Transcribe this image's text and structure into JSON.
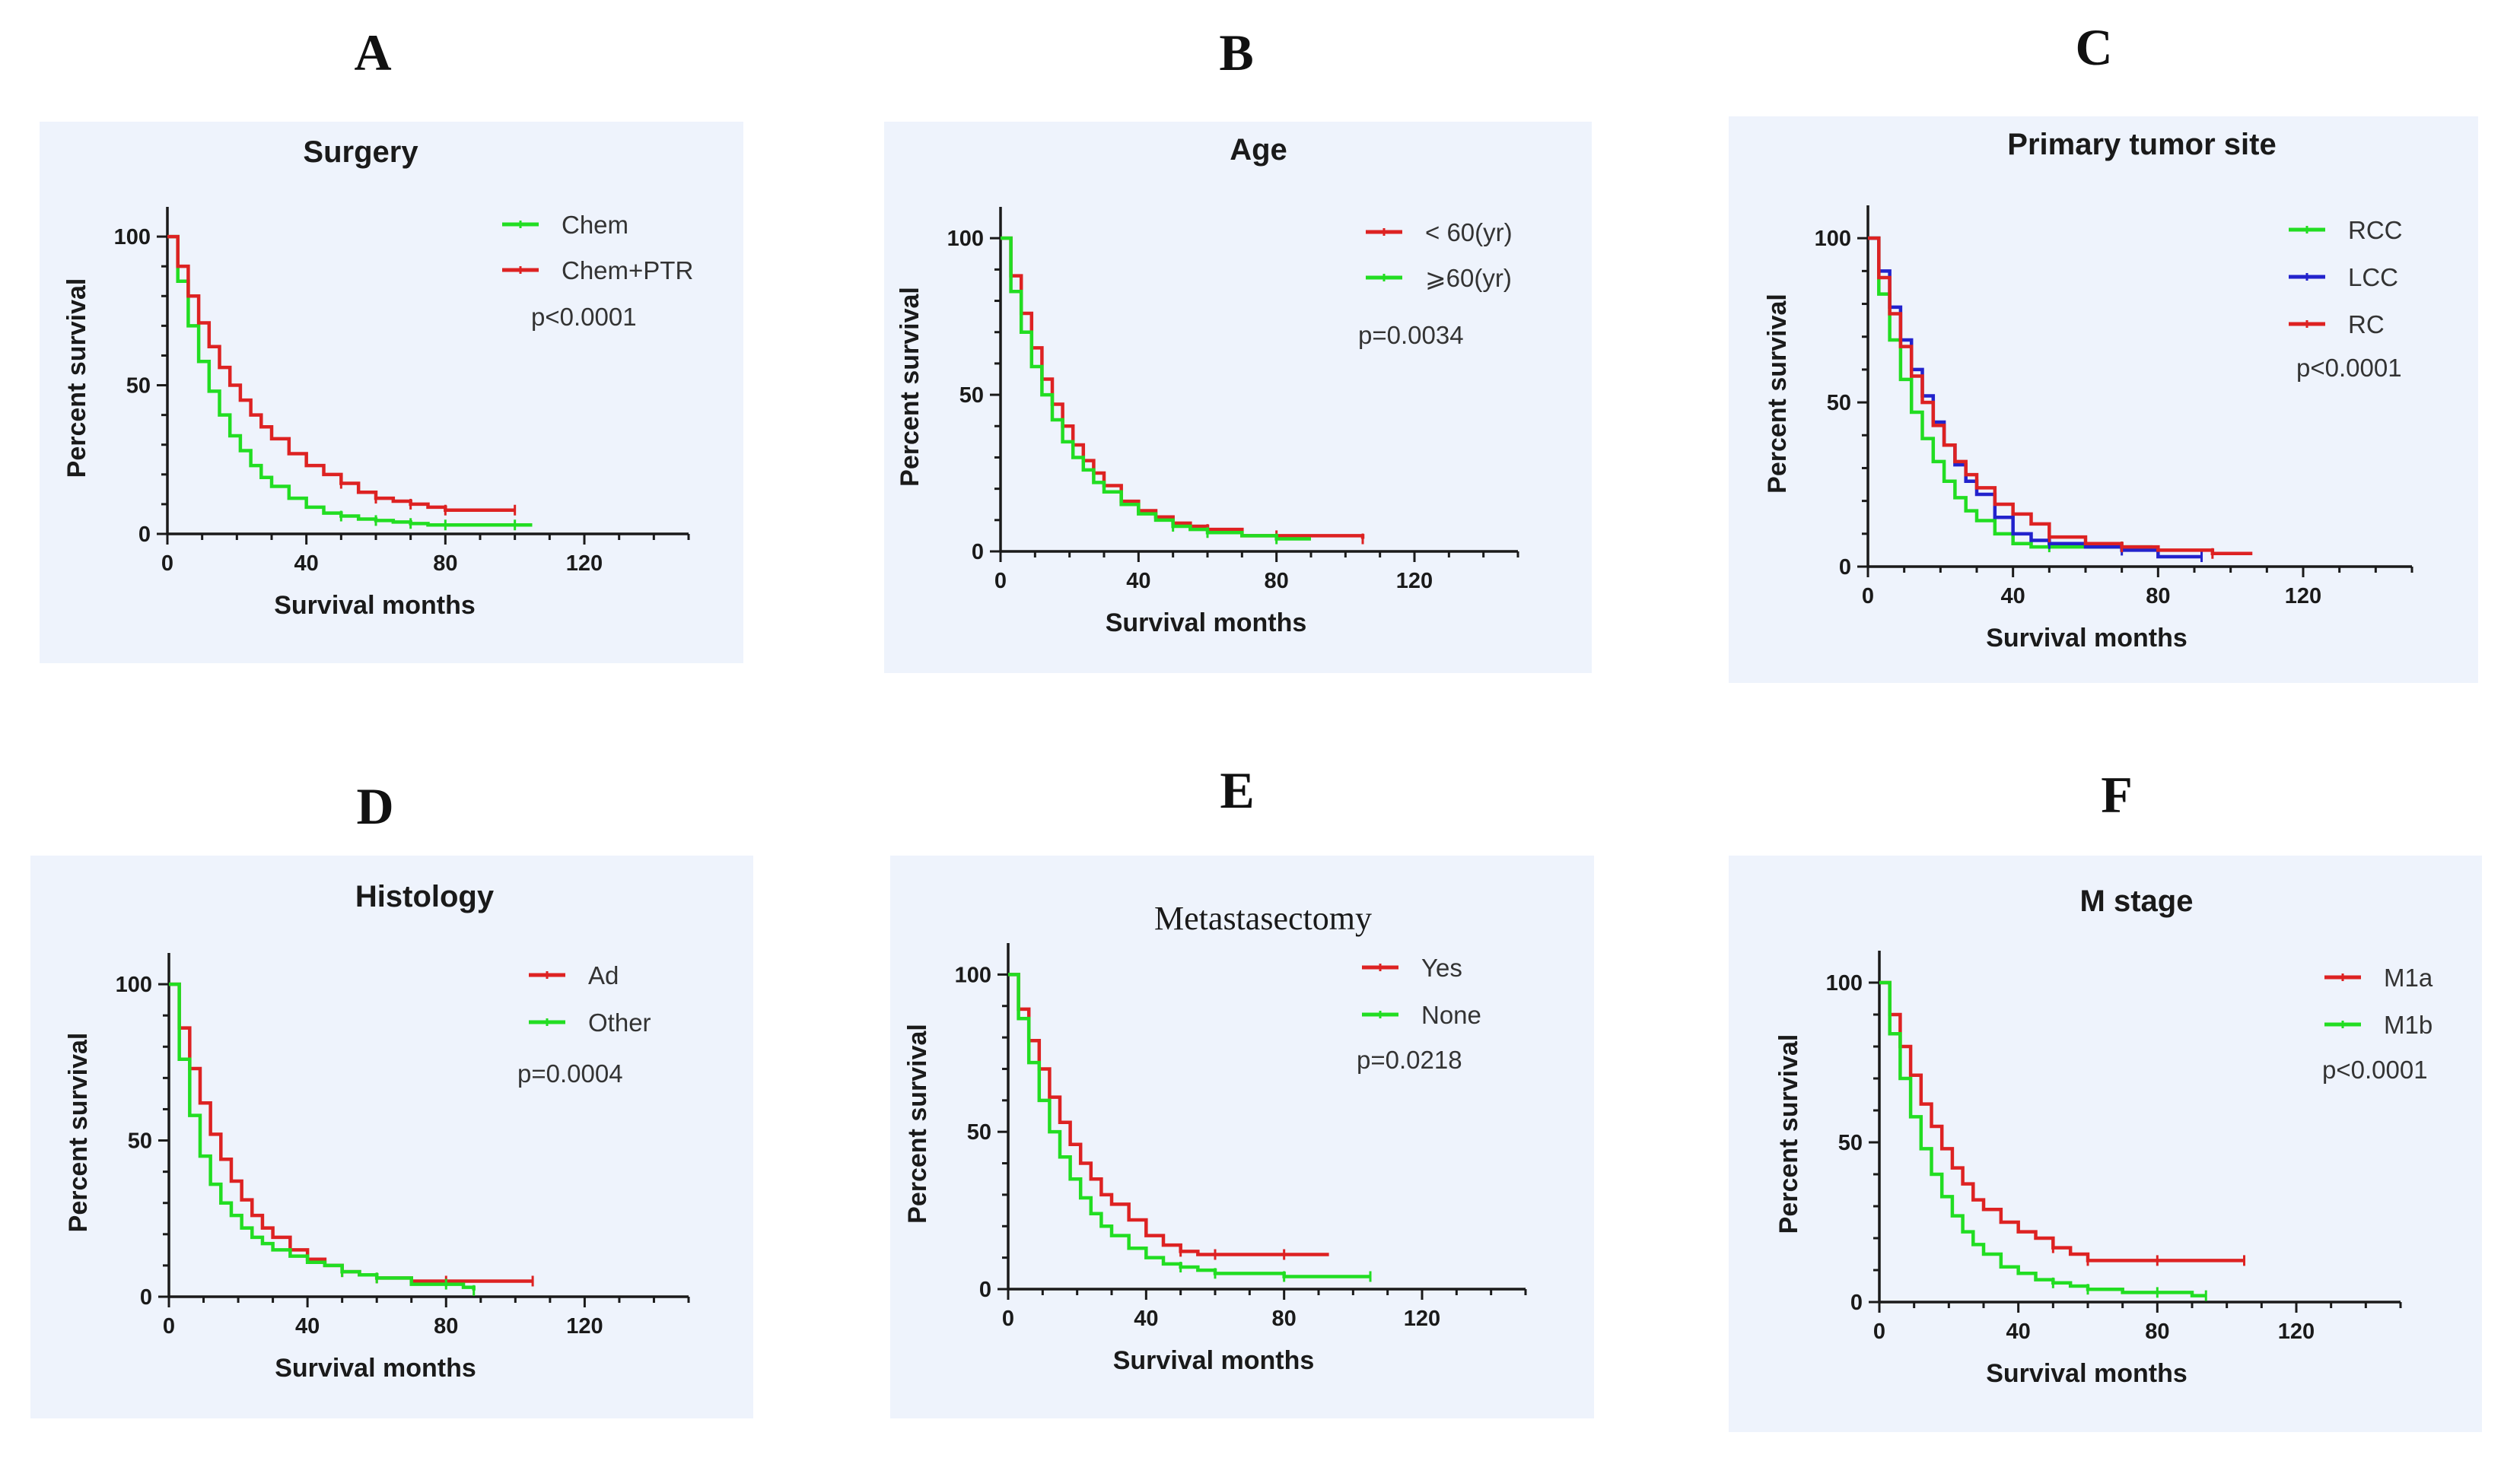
{
  "chart_data": [
    {
      "panel": "A",
      "type": "line",
      "title": "Surgery",
      "xlabel": "Survival months",
      "ylabel": "Percent survival",
      "xlim": [
        0,
        150
      ],
      "ylim": [
        0,
        110
      ],
      "xticks": [
        "0",
        "40",
        "80",
        "120"
      ],
      "yticks": [
        "0",
        "50",
        "100"
      ],
      "xtick_values": [
        0,
        40,
        80,
        120
      ],
      "ytick_values": [
        0,
        50,
        100
      ],
      "pvalue": "p<0.0001",
      "legend_position": "top-right",
      "series": [
        {
          "name": "Chem",
          "color": "#22dd22",
          "x": [
            0,
            3,
            6,
            9,
            12,
            15,
            18,
            21,
            24,
            27,
            30,
            35,
            40,
            45,
            50,
            55,
            60,
            65,
            70,
            75,
            80,
            90,
            100,
            105
          ],
          "y": [
            100,
            85,
            70,
            58,
            48,
            40,
            33,
            28,
            23,
            19,
            16,
            12,
            9,
            7,
            6,
            5,
            4.5,
            4,
            3.5,
            3,
            3,
            3,
            3,
            3
          ]
        },
        {
          "name": "Chem+PTR",
          "color": "#dd2222",
          "x": [
            0,
            3,
            6,
            9,
            12,
            15,
            18,
            21,
            24,
            27,
            30,
            35,
            40,
            45,
            50,
            55,
            60,
            65,
            70,
            75,
            80,
            90,
            100
          ],
          "y": [
            100,
            90,
            80,
            71,
            63,
            56,
            50,
            45,
            40,
            36,
            32,
            27,
            23,
            20,
            17,
            14,
            12,
            11,
            10,
            9,
            8,
            8,
            8
          ]
        }
      ]
    },
    {
      "panel": "B",
      "type": "line",
      "title": "Age",
      "xlabel": "Survival months",
      "ylabel": "Percent survival",
      "xlim": [
        0,
        150
      ],
      "ylim": [
        0,
        110
      ],
      "xticks": [
        "0",
        "40",
        "80",
        "120"
      ],
      "yticks": [
        "0",
        "50",
        "100"
      ],
      "xtick_values": [
        0,
        40,
        80,
        120
      ],
      "ytick_values": [
        0,
        50,
        100
      ],
      "pvalue": "p=0.0034",
      "legend_position": "top-right",
      "series": [
        {
          "name": "< 60(yr)",
          "color": "#dd2222",
          "x": [
            0,
            3,
            6,
            9,
            12,
            15,
            18,
            21,
            24,
            27,
            30,
            35,
            40,
            45,
            50,
            55,
            60,
            70,
            80,
            90,
            105
          ],
          "y": [
            100,
            88,
            76,
            65,
            55,
            47,
            40,
            34,
            29,
            25,
            21,
            16,
            13,
            11,
            9,
            8,
            7,
            5,
            5,
            5,
            4
          ]
        },
        {
          "name": "⩾60(yr)",
          "color": "#22dd22",
          "x": [
            0,
            3,
            6,
            9,
            12,
            15,
            18,
            21,
            24,
            27,
            30,
            35,
            40,
            45,
            50,
            55,
            60,
            70,
            80,
            90
          ],
          "y": [
            100,
            83,
            70,
            59,
            50,
            42,
            35,
            30,
            26,
            22,
            19,
            15,
            12,
            10,
            8,
            7,
            6,
            5,
            4,
            4
          ]
        }
      ]
    },
    {
      "panel": "C",
      "type": "line",
      "title": "Primary tumor site",
      "xlabel": "Survival months",
      "ylabel": "Percent survival",
      "xlim": [
        0,
        150
      ],
      "ylim": [
        0,
        110
      ],
      "xticks": [
        "0",
        "40",
        "80",
        "120"
      ],
      "yticks": [
        "0",
        "50",
        "100"
      ],
      "xtick_values": [
        0,
        40,
        80,
        120
      ],
      "ytick_values": [
        0,
        50,
        100
      ],
      "pvalue": "p<0.0001",
      "legend_position": "top-right",
      "series": [
        {
          "name": "RCC",
          "color": "#22dd22",
          "x": [
            0,
            3,
            6,
            9,
            12,
            15,
            18,
            21,
            24,
            27,
            30,
            35,
            40,
            45,
            50,
            60,
            70,
            78
          ],
          "y": [
            100,
            83,
            69,
            57,
            47,
            39,
            32,
            26,
            21,
            17,
            14,
            10,
            7,
            6,
            6,
            6,
            6,
            5
          ]
        },
        {
          "name": "LCC",
          "color": "#2222cc",
          "x": [
            0,
            3,
            6,
            9,
            12,
            15,
            18,
            21,
            24,
            27,
            30,
            35,
            40,
            45,
            50,
            60,
            70,
            80,
            92
          ],
          "y": [
            100,
            90,
            79,
            69,
            60,
            52,
            44,
            37,
            31,
            26,
            22,
            15,
            10,
            8,
            7,
            6,
            5,
            3,
            3
          ]
        },
        {
          "name": "RC",
          "color": "#dd2222",
          "x": [
            0,
            3,
            6,
            9,
            12,
            15,
            18,
            21,
            24,
            27,
            30,
            35,
            40,
            45,
            50,
            60,
            70,
            80,
            95,
            106
          ],
          "y": [
            100,
            88,
            77,
            67,
            58,
            50,
            43,
            37,
            32,
            28,
            24,
            19,
            16,
            13,
            9,
            7,
            6,
            5,
            4,
            4
          ]
        }
      ]
    },
    {
      "panel": "D",
      "type": "line",
      "title": "Histology",
      "xlabel": "Survival months",
      "ylabel": "Percent survival",
      "xlim": [
        0,
        150
      ],
      "ylim": [
        0,
        110
      ],
      "xticks": [
        "0",
        "40",
        "80",
        "120"
      ],
      "yticks": [
        "0",
        "50",
        "100"
      ],
      "xtick_values": [
        0,
        40,
        80,
        120
      ],
      "ytick_values": [
        0,
        50,
        100
      ],
      "pvalue": "p=0.0004",
      "legend_position": "top-right",
      "series": [
        {
          "name": "Ad",
          "color": "#dd2222",
          "x": [
            0,
            3,
            6,
            9,
            12,
            15,
            18,
            21,
            24,
            27,
            30,
            35,
            40,
            45,
            50,
            55,
            60,
            70,
            80,
            90,
            105
          ],
          "y": [
            100,
            86,
            73,
            62,
            52,
            44,
            37,
            31,
            26,
            22,
            19,
            15,
            12,
            10,
            8,
            7,
            6,
            5,
            5,
            5,
            5
          ]
        },
        {
          "name": "Other",
          "color": "#22dd22",
          "x": [
            0,
            3,
            6,
            9,
            12,
            15,
            18,
            21,
            24,
            27,
            30,
            35,
            40,
            45,
            50,
            55,
            60,
            70,
            80,
            85,
            88
          ],
          "y": [
            100,
            76,
            58,
            45,
            36,
            30,
            26,
            22,
            19,
            17,
            15,
            13,
            11,
            10,
            8,
            7,
            6,
            4,
            4,
            3,
            2
          ]
        }
      ]
    },
    {
      "panel": "E",
      "type": "line",
      "title": "Metastasectomy",
      "xlabel": "Survival months",
      "ylabel": "Percent survival",
      "xlim": [
        0,
        150
      ],
      "ylim": [
        0,
        110
      ],
      "xticks": [
        "0",
        "40",
        "80",
        "120"
      ],
      "yticks": [
        "0",
        "50",
        "100"
      ],
      "xtick_values": [
        0,
        40,
        80,
        120
      ],
      "ytick_values": [
        0,
        50,
        100
      ],
      "pvalue": "p=0.0218",
      "legend_position": "top-right",
      "series": [
        {
          "name": "Yes",
          "color": "#dd2222",
          "x": [
            0,
            3,
            6,
            9,
            12,
            15,
            18,
            21,
            24,
            27,
            30,
            35,
            40,
            45,
            50,
            55,
            60,
            70,
            80,
            93
          ],
          "y": [
            100,
            89,
            79,
            70,
            61,
            53,
            46,
            40,
            35,
            30,
            27,
            22,
            17,
            14,
            12,
            11,
            11,
            11,
            11,
            11
          ]
        },
        {
          "name": "None",
          "color": "#22dd22",
          "x": [
            0,
            3,
            6,
            9,
            12,
            15,
            18,
            21,
            24,
            27,
            30,
            35,
            40,
            45,
            50,
            55,
            60,
            70,
            80,
            90,
            105
          ],
          "y": [
            100,
            86,
            72,
            60,
            50,
            42,
            35,
            29,
            24,
            20,
            17,
            13,
            10,
            8,
            7,
            6,
            5,
            5,
            4,
            4,
            4
          ]
        }
      ]
    },
    {
      "panel": "F",
      "type": "line",
      "title": "M stage",
      "xlabel": "Survival months",
      "ylabel": "Percent survival",
      "xlim": [
        0,
        150
      ],
      "ylim": [
        0,
        110
      ],
      "xticks": [
        "0",
        "40",
        "80",
        "120"
      ],
      "yticks": [
        "0",
        "50",
        "100"
      ],
      "xtick_values": [
        0,
        40,
        80,
        120
      ],
      "ytick_values": [
        0,
        50,
        100
      ],
      "pvalue": "p<0.0001",
      "legend_position": "top-right",
      "series": [
        {
          "name": "M1a",
          "color": "#dd2222",
          "x": [
            0,
            3,
            6,
            9,
            12,
            15,
            18,
            21,
            24,
            27,
            30,
            35,
            40,
            45,
            50,
            55,
            60,
            70,
            80,
            90,
            105
          ],
          "y": [
            100,
            90,
            80,
            71,
            62,
            55,
            48,
            42,
            37,
            32,
            29,
            25,
            22,
            20,
            17,
            15,
            13,
            13,
            13,
            13,
            13
          ]
        },
        {
          "name": "M1b",
          "color": "#22dd22",
          "x": [
            0,
            3,
            6,
            9,
            12,
            15,
            18,
            21,
            24,
            27,
            30,
            35,
            40,
            45,
            50,
            55,
            60,
            70,
            80,
            90,
            94
          ],
          "y": [
            100,
            84,
            70,
            58,
            48,
            40,
            33,
            27,
            22,
            18,
            15,
            11,
            9,
            7,
            6,
            5,
            4,
            3,
            3,
            2,
            2
          ]
        }
      ]
    }
  ]
}
